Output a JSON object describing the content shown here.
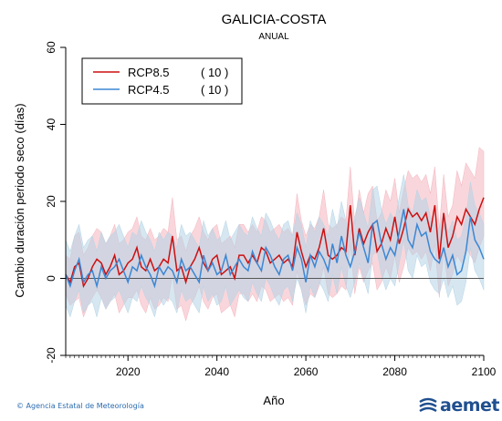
{
  "header": {
    "title": "GALICIA-COSTA",
    "subtitle": "ANUAL"
  },
  "footer": {
    "credit": "© Agencia Estatal de Meteorología",
    "logo_text": "aemet"
  },
  "chart_data": {
    "type": "line",
    "title": "GALICIA-COSTA",
    "subtitle": "ANUAL",
    "xlabel": "Año",
    "ylabel": "Cambio duración periodo seco (días)",
    "xlim": [
      2006,
      2100
    ],
    "ylim": [
      -20,
      60
    ],
    "xticks": [
      2020,
      2040,
      2060,
      2080,
      2100
    ],
    "yticks": [
      -20,
      0,
      20,
      40,
      60
    ],
    "zero_line": true,
    "legend": {
      "position": "top-left"
    },
    "x": [
      2006,
      2007,
      2008,
      2009,
      2010,
      2011,
      2012,
      2013,
      2014,
      2015,
      2016,
      2017,
      2018,
      2019,
      2020,
      2021,
      2022,
      2023,
      2024,
      2025,
      2026,
      2027,
      2028,
      2029,
      2030,
      2031,
      2032,
      2033,
      2034,
      2035,
      2036,
      2037,
      2038,
      2039,
      2040,
      2041,
      2042,
      2043,
      2044,
      2045,
      2046,
      2047,
      2048,
      2049,
      2050,
      2051,
      2052,
      2053,
      2054,
      2055,
      2056,
      2057,
      2058,
      2059,
      2060,
      2061,
      2062,
      2063,
      2064,
      2065,
      2066,
      2067,
      2068,
      2069,
      2070,
      2071,
      2072,
      2073,
      2074,
      2075,
      2076,
      2077,
      2078,
      2079,
      2080,
      2081,
      2082,
      2083,
      2084,
      2085,
      2086,
      2087,
      2088,
      2089,
      2090,
      2091,
      2092,
      2093,
      2094,
      2095,
      2096,
      2097,
      2098,
      2099,
      2100
    ],
    "series": [
      {
        "name": "RCP8.5",
        "count": "( 10 )",
        "color": "#cc1010",
        "band_color": "#f4b4be",
        "values": [
          1,
          -1,
          3,
          4,
          -2,
          0,
          3,
          5,
          4,
          1,
          3,
          6,
          1,
          2,
          4,
          5,
          8,
          3,
          2,
          5,
          2,
          3,
          5,
          4,
          11,
          2,
          3,
          -1,
          3,
          5,
          8,
          4,
          2,
          5,
          6,
          1,
          2,
          3,
          0,
          6,
          6,
          4,
          6,
          4,
          8,
          7,
          4,
          5,
          6,
          4,
          5,
          3,
          12,
          7,
          3,
          6,
          5,
          8,
          13,
          6,
          5,
          6,
          8,
          7,
          19,
          6,
          13,
          9,
          12,
          14,
          7,
          9,
          13,
          10,
          16,
          9,
          13,
          18,
          16,
          17,
          15,
          17,
          12,
          19,
          5,
          17,
          8,
          11,
          16,
          14,
          18,
          16,
          14,
          18,
          21
        ],
        "low": [
          -4,
          -7,
          -6,
          -5,
          -10,
          -7,
          -5,
          -3,
          -5,
          -8,
          -6,
          -4,
          -9,
          -7,
          -5,
          -5,
          -3,
          -7,
          -9,
          -5,
          -8,
          -7,
          -5,
          -6,
          1,
          -8,
          -7,
          -11,
          -7,
          -5,
          -2,
          -6,
          -8,
          -5,
          -4,
          -9,
          -8,
          -7,
          -10,
          -4,
          -4,
          -6,
          -4,
          -6,
          -2,
          -3,
          -6,
          -5,
          -4,
          -6,
          -5,
          -7,
          2,
          -3,
          -7,
          -4,
          -5,
          -2,
          3,
          -4,
          -5,
          -4,
          -2,
          -3,
          9,
          -4,
          3,
          -1,
          2,
          4,
          -3,
          -1,
          3,
          0,
          6,
          -1,
          3,
          8,
          6,
          7,
          5,
          7,
          2,
          9,
          -5,
          7,
          -2,
          1,
          6,
          4,
          8,
          6,
          4,
          8,
          11
        ],
        "high": [
          6,
          5,
          11,
          12,
          6,
          8,
          11,
          13,
          12,
          9,
          11,
          14,
          9,
          10,
          12,
          13,
          16,
          11,
          10,
          13,
          10,
          11,
          13,
          12,
          21,
          10,
          11,
          7,
          11,
          13,
          16,
          12,
          10,
          13,
          14,
          9,
          10,
          11,
          8,
          14,
          14,
          12,
          14,
          12,
          16,
          15,
          12,
          13,
          14,
          12,
          13,
          11,
          22,
          15,
          11,
          14,
          13,
          16,
          23,
          14,
          13,
          14,
          16,
          15,
          29,
          14,
          23,
          17,
          22,
          24,
          15,
          17,
          23,
          20,
          26,
          17,
          23,
          28,
          26,
          27,
          25,
          27,
          22,
          29,
          13,
          27,
          16,
          19,
          28,
          24,
          30,
          28,
          26,
          34,
          33
        ]
      },
      {
        "name": "RCP4.5",
        "count": "( 10 )",
        "color": "#3b87d4",
        "band_color": "#b4d4e6",
        "values": [
          1,
          -2,
          2,
          5,
          -1,
          1,
          2,
          -2,
          3,
          0,
          2,
          3,
          5,
          2,
          -1,
          3,
          2,
          6,
          3,
          1,
          -2,
          3,
          1,
          3,
          2,
          -1,
          5,
          2,
          3,
          1,
          -1,
          6,
          2,
          4,
          1,
          2,
          6,
          1,
          3,
          5,
          3,
          2,
          7,
          4,
          2,
          8,
          6,
          3,
          1,
          5,
          6,
          2,
          8,
          5,
          -1,
          6,
          3,
          7,
          5,
          2,
          9,
          4,
          11,
          6,
          3,
          7,
          12,
          8,
          4,
          14,
          15,
          9,
          5,
          8,
          6,
          12,
          18,
          10,
          8,
          14,
          11,
          12,
          7,
          5,
          4,
          8,
          3,
          6,
          1,
          2,
          7,
          16,
          10,
          8,
          5
        ],
        "low": [
          -7,
          -10,
          -6,
          -3,
          -9,
          -7,
          -6,
          -10,
          -5,
          -8,
          -6,
          -5,
          -3,
          -6,
          -9,
          -5,
          -6,
          -2,
          -5,
          -7,
          -10,
          -5,
          -7,
          -5,
          -6,
          -9,
          -3,
          -6,
          -5,
          -7,
          -9,
          -2,
          -6,
          -4,
          -7,
          -6,
          -2,
          -7,
          -5,
          -3,
          -5,
          -6,
          -1,
          -4,
          -6,
          0,
          -2,
          -5,
          -7,
          -3,
          -2,
          -6,
          0,
          -3,
          -9,
          -2,
          -5,
          -1,
          -3,
          -6,
          1,
          -4,
          3,
          -2,
          -5,
          -1,
          4,
          0,
          -4,
          6,
          7,
          1,
          -3,
          0,
          -2,
          4,
          10,
          2,
          0,
          6,
          3,
          4,
          -1,
          -3,
          -4,
          0,
          -5,
          -2,
          -7,
          -6,
          -1,
          8,
          2,
          0,
          -3
        ],
        "high": [
          10,
          7,
          11,
          14,
          8,
          10,
          11,
          7,
          12,
          9,
          11,
          12,
          14,
          11,
          8,
          12,
          11,
          15,
          12,
          10,
          7,
          12,
          10,
          12,
          11,
          8,
          14,
          11,
          12,
          10,
          8,
          15,
          11,
          13,
          10,
          11,
          15,
          10,
          12,
          14,
          12,
          11,
          16,
          13,
          11,
          17,
          15,
          12,
          10,
          14,
          15,
          11,
          17,
          14,
          8,
          15,
          12,
          16,
          14,
          11,
          18,
          13,
          20,
          15,
          12,
          16,
          21,
          17,
          13,
          23,
          24,
          18,
          14,
          17,
          15,
          21,
          27,
          19,
          17,
          23,
          20,
          21,
          16,
          14,
          13,
          17,
          12,
          15,
          10,
          11,
          16,
          25,
          19,
          17,
          14
        ]
      }
    ]
  }
}
